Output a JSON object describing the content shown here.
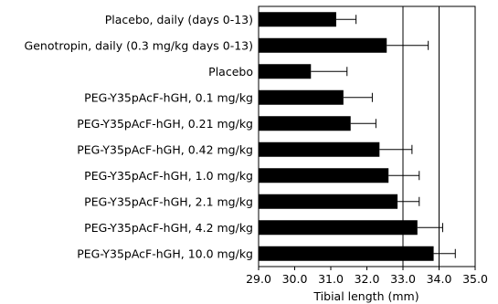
{
  "chart_data": {
    "type": "bar",
    "orientation": "horizontal",
    "title": "",
    "xlabel": "Tibial length (mm)",
    "ylabel": "",
    "xlim": [
      29.0,
      35.0
    ],
    "xticks": [
      "29.0",
      "30.0",
      "31.0",
      "32.0",
      "33.0",
      "34.0",
      "35.0"
    ],
    "grid_x_at": [
      33.0,
      34.0
    ],
    "grid": true,
    "legend": "none",
    "bar_color": "#000000",
    "categories": [
      "Placebo, daily (days 0-13)",
      "Genotropin, daily (0.3 mg/kg days 0-13)",
      "Placebo",
      "PEG-Y35pAcF-hGH, 0.1 mg/kg",
      "PEG-Y35pAcF-hGH, 0.21 mg/kg",
      "PEG-Y35pAcF-hGH, 0.42 mg/kg",
      "PEG-Y35pAcF-hGH, 1.0 mg/kg",
      "PEG-Y35pAcF-hGH, 2.1 mg/kg",
      "PEG-Y35pAcF-hGH, 4.2 mg/kg",
      "PEG-Y35pAcF-hGH, 10.0 mg/kg"
    ],
    "values": [
      31.15,
      32.55,
      30.45,
      31.35,
      31.55,
      32.35,
      32.6,
      32.85,
      33.4,
      33.85
    ],
    "errors": [
      0.55,
      1.15,
      1.0,
      0.8,
      0.7,
      0.9,
      0.85,
      0.6,
      0.7,
      0.6
    ]
  }
}
